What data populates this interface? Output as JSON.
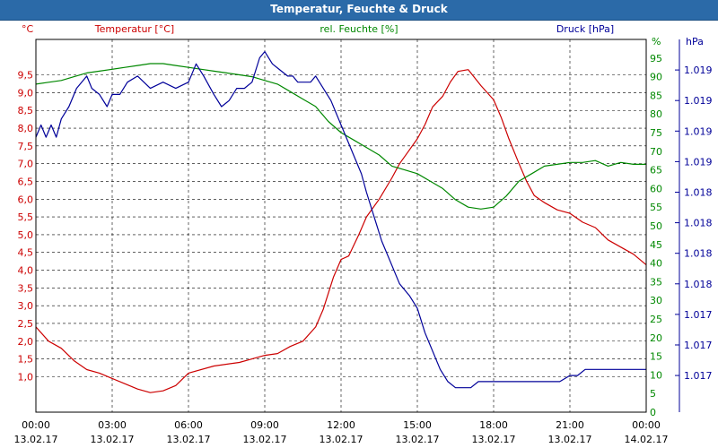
{
  "window": {
    "title": "Temperatur, Feuchte & Druck"
  },
  "chart_data": {
    "type": "line",
    "title": "Temperatur, Feuchte & Druck",
    "x_ticks": [
      {
        "t": 0,
        "time": "00:00",
        "date": "13.02.17"
      },
      {
        "t": 3,
        "time": "03:00",
        "date": "13.02.17"
      },
      {
        "t": 6,
        "time": "06:00",
        "date": "13.02.17"
      },
      {
        "t": 9,
        "time": "09:00",
        "date": "13.02.17"
      },
      {
        "t": 12,
        "time": "12:00",
        "date": "13.02.17"
      },
      {
        "t": 15,
        "time": "15:00",
        "date": "13.02.17"
      },
      {
        "t": 18,
        "time": "18:00",
        "date": "13.02.17"
      },
      {
        "t": 21,
        "time": "21:00",
        "date": "13.02.17"
      },
      {
        "t": 24,
        "time": "00:00",
        "date": "14.02.17"
      }
    ],
    "xlim": [
      0,
      24
    ],
    "axes": {
      "temperature": {
        "label": "Temperatur [°C]",
        "unit": "°C",
        "color": "#cc0000",
        "ylim": [
          0,
          10.5
        ],
        "ticks": [
          {
            "v": 1.0,
            "label": "1,0"
          },
          {
            "v": 1.5,
            "label": "1,5"
          },
          {
            "v": 2.0,
            "label": "2,0"
          },
          {
            "v": 2.5,
            "label": "2,5"
          },
          {
            "v": 3.0,
            "label": "3,0"
          },
          {
            "v": 3.5,
            "label": "3,5"
          },
          {
            "v": 4.0,
            "label": "4,0"
          },
          {
            "v": 4.5,
            "label": "4,5"
          },
          {
            "v": 5.0,
            "label": "5,0"
          },
          {
            "v": 5.5,
            "label": "5,5"
          },
          {
            "v": 6.0,
            "label": "6,0"
          },
          {
            "v": 6.5,
            "label": "6,5"
          },
          {
            "v": 7.0,
            "label": "7,0"
          },
          {
            "v": 7.5,
            "label": "7,5"
          },
          {
            "v": 8.0,
            "label": "8,0"
          },
          {
            "v": 8.5,
            "label": "8,5"
          },
          {
            "v": 9.0,
            "label": "9,0"
          },
          {
            "v": 9.5,
            "label": "9,5"
          }
        ]
      },
      "humidity": {
        "label": "rel. Feuchte [%]",
        "unit": "%",
        "color": "#008800",
        "ylim": [
          0,
          100
        ],
        "ticks": [
          {
            "v": 0,
            "label": "0"
          },
          {
            "v": 5,
            "label": "5"
          },
          {
            "v": 10,
            "label": "10"
          },
          {
            "v": 15,
            "label": "15"
          },
          {
            "v": 20,
            "label": "20"
          },
          {
            "v": 25,
            "label": "25"
          },
          {
            "v": 30,
            "label": "30"
          },
          {
            "v": 35,
            "label": "35"
          },
          {
            "v": 40,
            "label": "40"
          },
          {
            "v": 45,
            "label": "45"
          },
          {
            "v": 50,
            "label": "50"
          },
          {
            "v": 55,
            "label": "55"
          },
          {
            "v": 60,
            "label": "60"
          },
          {
            "v": 65,
            "label": "65"
          },
          {
            "v": 70,
            "label": "70"
          },
          {
            "v": 75,
            "label": "75"
          },
          {
            "v": 80,
            "label": "80"
          },
          {
            "v": 85,
            "label": "85"
          },
          {
            "v": 90,
            "label": "90"
          },
          {
            "v": 95,
            "label": "95"
          }
        ]
      },
      "pressure": {
        "label": "Druck [hPa]",
        "unit": "hPa",
        "color": "#000099",
        "ylim": [
          1016.7,
          1019.75
        ],
        "ticks": [
          {
            "v": 1017.0,
            "label": "1.017"
          },
          {
            "v": 1017.25,
            "label": "1.017"
          },
          {
            "v": 1017.5,
            "label": "1.017"
          },
          {
            "v": 1017.75,
            "label": "1.018"
          },
          {
            "v": 1018.0,
            "label": "1.018"
          },
          {
            "v": 1018.25,
            "label": "1.018"
          },
          {
            "v": 1018.5,
            "label": "1.018"
          },
          {
            "v": 1018.75,
            "label": "1.019"
          },
          {
            "v": 1019.0,
            "label": "1.019"
          },
          {
            "v": 1019.25,
            "label": "1.019"
          },
          {
            "v": 1019.5,
            "label": "1.019"
          }
        ]
      }
    },
    "series": [
      {
        "name": "Temperatur",
        "axis": "temperature",
        "color": "#cc0000",
        "t": [
          0,
          0.5,
          1,
          1.5,
          2,
          2.5,
          3,
          3.5,
          4,
          4.5,
          5,
          5.5,
          6,
          7,
          8,
          8.5,
          9,
          9.5,
          10,
          10.5,
          11,
          11.3,
          11.7,
          12,
          12.3,
          12.7,
          13,
          13.5,
          14,
          14.3,
          14.6,
          15,
          15.3,
          15.6,
          16,
          16.3,
          16.6,
          17,
          17.5,
          18,
          18.3,
          18.6,
          19,
          19.3,
          19.6,
          20,
          20.5,
          21,
          21.5,
          22,
          22.5,
          23,
          23.5,
          24
        ],
        "values": [
          2.4,
          2.0,
          1.8,
          1.45,
          1.2,
          1.1,
          0.95,
          0.8,
          0.65,
          0.55,
          0.6,
          0.75,
          1.1,
          1.3,
          1.4,
          1.5,
          1.6,
          1.65,
          1.85,
          2.0,
          2.4,
          2.9,
          3.8,
          4.3,
          4.4,
          5.0,
          5.5,
          6.0,
          6.6,
          7.0,
          7.3,
          7.7,
          8.1,
          8.6,
          8.9,
          9.3,
          9.6,
          9.65,
          9.2,
          8.8,
          8.3,
          7.7,
          7.0,
          6.5,
          6.1,
          5.9,
          5.7,
          5.6,
          5.35,
          5.2,
          4.85,
          4.65,
          4.45,
          4.15
        ]
      },
      {
        "name": "rel. Feuchte",
        "axis": "humidity",
        "color": "#008800",
        "t": [
          0,
          0.5,
          1,
          1.5,
          2,
          2.5,
          3,
          3.5,
          4,
          4.5,
          5,
          5.5,
          6,
          6.5,
          7,
          7.5,
          8,
          8.5,
          9,
          9.5,
          10,
          10.5,
          11,
          11.5,
          12,
          12.5,
          13,
          13.5,
          14,
          14.5,
          15,
          15.5,
          16,
          16.5,
          17,
          17.5,
          18,
          18.5,
          19,
          19.5,
          20,
          20.5,
          21,
          21.5,
          22,
          22.5,
          23,
          23.5,
          24
        ],
        "values": [
          88,
          88.5,
          89,
          90,
          91,
          91.5,
          92,
          92.5,
          93,
          93.5,
          93.5,
          93,
          92.5,
          92,
          91.5,
          91,
          90.5,
          90,
          89,
          88,
          86,
          84,
          82,
          78,
          75,
          73,
          71,
          69,
          66,
          65,
          64,
          62,
          60,
          57,
          55,
          54.5,
          55,
          58,
          62,
          64,
          66,
          66.5,
          67,
          67,
          67.5,
          66,
          67,
          66.5,
          66.5
        ]
      },
      {
        "name": "Druck",
        "axis": "pressure",
        "color": "#000099",
        "t": [
          0,
          0.2,
          0.4,
          0.6,
          0.8,
          1.0,
          1.3,
          1.6,
          2.0,
          2.2,
          2.5,
          2.8,
          3.0,
          3.3,
          3.6,
          4.0,
          4.5,
          5.0,
          5.5,
          6.0,
          6.3,
          6.6,
          7.0,
          7.3,
          7.6,
          7.9,
          8.2,
          8.5,
          8.8,
          9.0,
          9.3,
          9.6,
          9.9,
          10.1,
          10.3,
          10.5,
          10.8,
          11.0,
          11.3,
          11.6,
          11.9,
          12.2,
          12.5,
          12.8,
          13.0,
          13.3,
          13.6,
          14.0,
          14.3,
          14.7,
          15.0,
          15.3,
          15.6,
          15.9,
          16.2,
          16.5,
          16.8,
          17.1,
          17.4,
          17.7,
          18.0,
          18.5,
          19.0,
          19.5,
          20.0,
          20.3,
          20.6,
          21.0,
          21.3,
          21.6,
          22.0,
          22.3,
          22.6,
          22.9,
          23.2,
          23.5,
          23.8,
          24.0
        ],
        "values": [
          1018.95,
          1019.05,
          1018.95,
          1019.05,
          1018.95,
          1019.1,
          1019.2,
          1019.35,
          1019.45,
          1019.35,
          1019.3,
          1019.2,
          1019.3,
          1019.3,
          1019.4,
          1019.45,
          1019.35,
          1019.4,
          1019.35,
          1019.4,
          1019.55,
          1019.45,
          1019.3,
          1019.2,
          1019.25,
          1019.35,
          1019.35,
          1019.4,
          1019.6,
          1019.65,
          1019.55,
          1019.5,
          1019.45,
          1019.45,
          1019.4,
          1019.4,
          1019.4,
          1019.45,
          1019.35,
          1019.25,
          1019.1,
          1018.95,
          1018.8,
          1018.65,
          1018.5,
          1018.3,
          1018.1,
          1017.9,
          1017.75,
          1017.65,
          1017.55,
          1017.35,
          1017.2,
          1017.05,
          1016.95,
          1016.9,
          1016.9,
          1016.9,
          1016.95,
          1016.95,
          1016.95,
          1016.95,
          1016.95,
          1016.95,
          1016.95,
          1016.95,
          1016.95,
          1017.0,
          1017.0,
          1017.05,
          1017.05,
          1017.05,
          1017.05,
          1017.05,
          1017.05,
          1017.05,
          1017.05,
          1017.05
        ]
      }
    ],
    "grid": true
  }
}
